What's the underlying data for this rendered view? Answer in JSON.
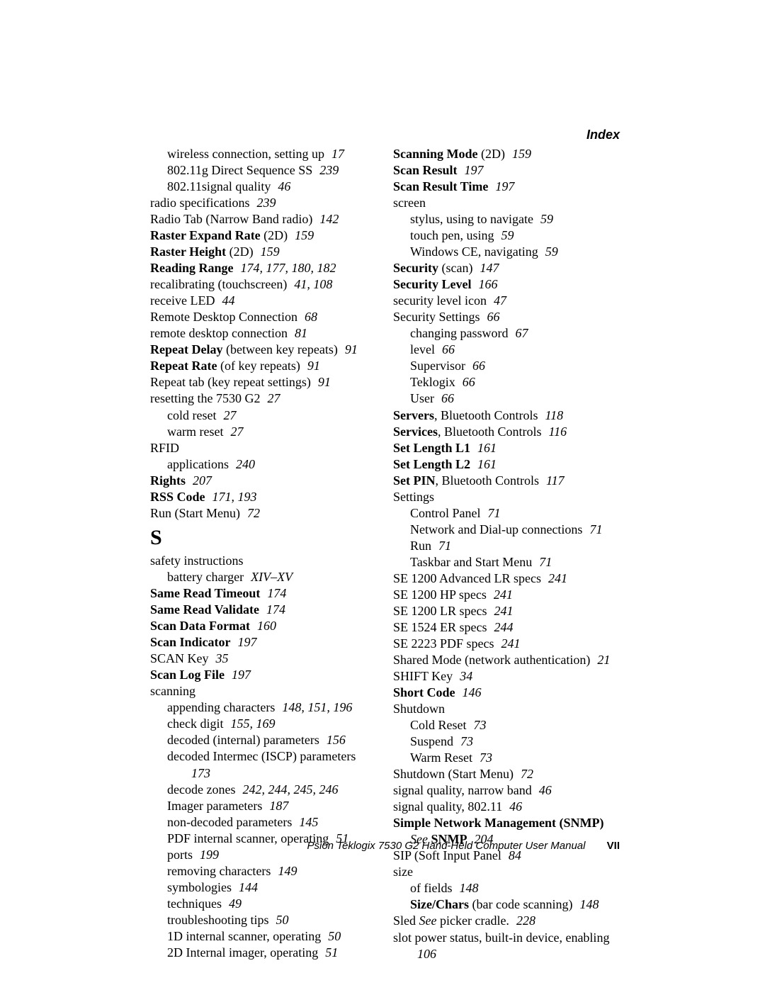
{
  "header": "Index",
  "footer": {
    "text": "Psion Teklogix 7530 G2 Hand-Held Computer User Manual",
    "page": "VII"
  },
  "left": [
    {
      "t": "wireless connection, setting up",
      "p": "17",
      "cls": "indent1"
    },
    {
      "t": "802.11g Direct Sequence SS",
      "p": "239",
      "cls": "indent1"
    },
    {
      "t": "802.11signal quality",
      "p": "46",
      "cls": "indent1"
    },
    {
      "t": "radio specifications",
      "p": "239",
      "cls": ""
    },
    {
      "t": "Radio Tab (Narrow Band radio)",
      "p": "142",
      "cls": ""
    },
    {
      "h": "<span class='bold'>Raster Expand Rate</span> (2D)",
      "p": "159",
      "cls": ""
    },
    {
      "h": "<span class='bold'>Raster Height</span> (2D)",
      "p": "159",
      "cls": ""
    },
    {
      "h": "<span class='bold'>Reading Range</span>",
      "p": "174, 177, 180, 182",
      "cls": ""
    },
    {
      "t": "recalibrating (touchscreen)",
      "p": "41, 108",
      "cls": ""
    },
    {
      "t": "receive LED",
      "p": "44",
      "cls": ""
    },
    {
      "t": "Remote Desktop Connection",
      "p": "68",
      "cls": ""
    },
    {
      "t": "remote desktop connection",
      "p": "81",
      "cls": ""
    },
    {
      "h": "<span class='bold'>Repeat Delay</span> (between key repeats)",
      "p": "91",
      "cls": ""
    },
    {
      "h": "<span class='bold'>Repeat Rate</span> (of key repeats)",
      "p": "91",
      "cls": ""
    },
    {
      "t": "Repeat tab (key repeat settings)",
      "p": "91",
      "cls": ""
    },
    {
      "t": "resetting the 7530 G2",
      "p": "27",
      "cls": ""
    },
    {
      "t": "cold reset",
      "p": "27",
      "cls": "indent1"
    },
    {
      "t": "warm reset",
      "p": "27",
      "cls": "indent1"
    },
    {
      "t": "RFID",
      "p": "",
      "cls": ""
    },
    {
      "t": "applications",
      "p": "240",
      "cls": "indent1"
    },
    {
      "h": "<span class='bold'>Rights</span>",
      "p": "207",
      "cls": ""
    },
    {
      "h": "<span class='bold'>RSS Code</span>",
      "p": "171, 193",
      "cls": ""
    },
    {
      "t": "Run (Start Menu)",
      "p": "72",
      "cls": ""
    },
    {
      "letter": "S"
    },
    {
      "t": "safety instructions",
      "p": "",
      "cls": ""
    },
    {
      "t": "battery charger",
      "p": "XIV–XV",
      "cls": "indent1"
    },
    {
      "h": "<span class='bold'>Same Read Timeout</span>",
      "p": "174",
      "cls": ""
    },
    {
      "h": "<span class='bold'>Same Read Validate</span>",
      "p": "174",
      "cls": ""
    },
    {
      "h": "<span class='bold'>Scan Data Format</span>",
      "p": "160",
      "cls": ""
    },
    {
      "h": "<span class='bold'>Scan Indicator</span>",
      "p": "197",
      "cls": ""
    },
    {
      "t": "SCAN Key",
      "p": "35",
      "cls": ""
    },
    {
      "h": "<span class='bold'>Scan Log File</span>",
      "p": "197",
      "cls": ""
    },
    {
      "t": "scanning",
      "p": "",
      "cls": ""
    },
    {
      "t": "appending characters",
      "p": "148, 151, 196",
      "cls": "indent1"
    },
    {
      "t": "check digit",
      "p": "155, 169",
      "cls": "indent1"
    },
    {
      "t": "decoded (internal) parameters",
      "p": "156",
      "cls": "indent1"
    },
    {
      "t": "decoded Intermec (ISCP) parameters",
      "p": "",
      "cls": "indent1"
    },
    {
      "t": "",
      "p": "173",
      "cls": "indent2"
    },
    {
      "t": "decode zones",
      "p": "242, 244, 245, 246",
      "cls": "indent1"
    },
    {
      "t": "Imager parameters",
      "p": "187",
      "cls": "indent1"
    },
    {
      "t": "non-decoded parameters",
      "p": "145",
      "cls": "indent1"
    },
    {
      "t": "PDF internal scanner, operating",
      "p": "51",
      "cls": "indent1"
    },
    {
      "t": "ports",
      "p": "199",
      "cls": "indent1"
    },
    {
      "t": "removing characters",
      "p": "149",
      "cls": "indent1"
    },
    {
      "t": "symbologies",
      "p": "144",
      "cls": "indent1"
    },
    {
      "t": "techniques",
      "p": "49",
      "cls": "indent1"
    },
    {
      "t": "troubleshooting tips",
      "p": "50",
      "cls": "indent1"
    },
    {
      "t": "1D internal scanner, operating",
      "p": "50",
      "cls": "indent1"
    },
    {
      "t": "2D Internal imager, operating",
      "p": "51",
      "cls": "indent1"
    }
  ],
  "right": [
    {
      "h": "<span class='bold'>Scanning Mode</span> (2D)",
      "p": "159",
      "cls": ""
    },
    {
      "h": "<span class='bold'>Scan Result</span>",
      "p": "197",
      "cls": ""
    },
    {
      "h": "<span class='bold'>Scan Result Time</span>",
      "p": "197",
      "cls": ""
    },
    {
      "t": "screen",
      "p": "",
      "cls": ""
    },
    {
      "t": "stylus, using to navigate",
      "p": "59",
      "cls": "indent1"
    },
    {
      "t": "touch pen, using",
      "p": "59",
      "cls": "indent1"
    },
    {
      "t": "Windows CE, navigating",
      "p": "59",
      "cls": "indent1"
    },
    {
      "h": "<span class='bold'>Security</span> (scan)",
      "p": "147",
      "cls": ""
    },
    {
      "h": "<span class='bold'>Security Level</span>",
      "p": "166",
      "cls": ""
    },
    {
      "t": "security level icon",
      "p": "47",
      "cls": ""
    },
    {
      "t": "Security Settings",
      "p": "66",
      "cls": ""
    },
    {
      "t": "changing password",
      "p": "67",
      "cls": "indent1"
    },
    {
      "t": "level",
      "p": "66",
      "cls": "indent1"
    },
    {
      "t": "Supervisor",
      "p": "66",
      "cls": "indent1"
    },
    {
      "t": "Teklogix",
      "p": "66",
      "cls": "indent1"
    },
    {
      "t": "User",
      "p": "66",
      "cls": "indent1"
    },
    {
      "h": "<span class='bold'>Servers</span>, Bluetooth Controls",
      "p": "118",
      "cls": ""
    },
    {
      "h": "<span class='bold'>Services</span>, Bluetooth Controls",
      "p": "116",
      "cls": ""
    },
    {
      "h": "<span class='bold'>Set Length L1</span>",
      "p": "161",
      "cls": ""
    },
    {
      "h": "<span class='bold'>Set Length L2</span>",
      "p": "161",
      "cls": ""
    },
    {
      "h": "<span class='bold'>Set PIN</span>, Bluetooth Controls",
      "p": "117",
      "cls": ""
    },
    {
      "t": "Settings",
      "p": "",
      "cls": ""
    },
    {
      "t": "Control Panel",
      "p": "71",
      "cls": "indent1"
    },
    {
      "t": "Network and Dial-up connections",
      "p": "71",
      "cls": "indent1"
    },
    {
      "t": "Run",
      "p": "71",
      "cls": "indent1"
    },
    {
      "t": "Taskbar and Start Menu",
      "p": "71",
      "cls": "indent1"
    },
    {
      "t": "SE 1200 Advanced LR specs",
      "p": "241",
      "cls": ""
    },
    {
      "t": "SE 1200 HP specs",
      "p": "241",
      "cls": ""
    },
    {
      "t": "SE 1200 LR specs",
      "p": "241",
      "cls": ""
    },
    {
      "t": "SE 1524 ER specs",
      "p": "244",
      "cls": ""
    },
    {
      "t": "SE 2223 PDF specs",
      "p": "241",
      "cls": ""
    },
    {
      "t": "Shared Mode (network authentication)",
      "p": "21",
      "cls": ""
    },
    {
      "t": "SHIFT Key",
      "p": "34",
      "cls": ""
    },
    {
      "h": "<span class='bold'>Short Code</span>",
      "p": "146",
      "cls": ""
    },
    {
      "t": "Shutdown",
      "p": "",
      "cls": ""
    },
    {
      "t": "Cold Reset",
      "p": "73",
      "cls": "indent1"
    },
    {
      "t": "Suspend",
      "p": "73",
      "cls": "indent1"
    },
    {
      "t": "Warm Reset",
      "p": "73",
      "cls": "indent1"
    },
    {
      "t": "Shutdown (Start Menu)",
      "p": "72",
      "cls": ""
    },
    {
      "t": "signal quality, narrow band",
      "p": "46",
      "cls": ""
    },
    {
      "t": "signal quality, 802.11",
      "p": "46",
      "cls": ""
    },
    {
      "h": "<span class='bold'>Simple Network Management (SNMP)</span>",
      "p": "",
      "cls": ""
    },
    {
      "h": "<span class='italic'>See</span> <span class='bold'>SNMP</span>",
      "p": "204",
      "cls": "indent1"
    },
    {
      "t": "SIP (Soft Input Panel",
      "p": "84",
      "cls": ""
    },
    {
      "t": "size",
      "p": "",
      "cls": ""
    },
    {
      "t": "of fields",
      "p": "148",
      "cls": "indent1"
    },
    {
      "h": "<span class='bold'>Size/Chars</span> (bar code scanning)",
      "p": "148",
      "cls": "indent1"
    },
    {
      "h": "Sled <span class='italic'>See</span> picker cradle.",
      "p": "228",
      "cls": ""
    },
    {
      "t": "slot power status, built-in device, enabling",
      "p": "",
      "cls": ""
    },
    {
      "t": "",
      "p": "106",
      "cls": "indent1"
    }
  ]
}
